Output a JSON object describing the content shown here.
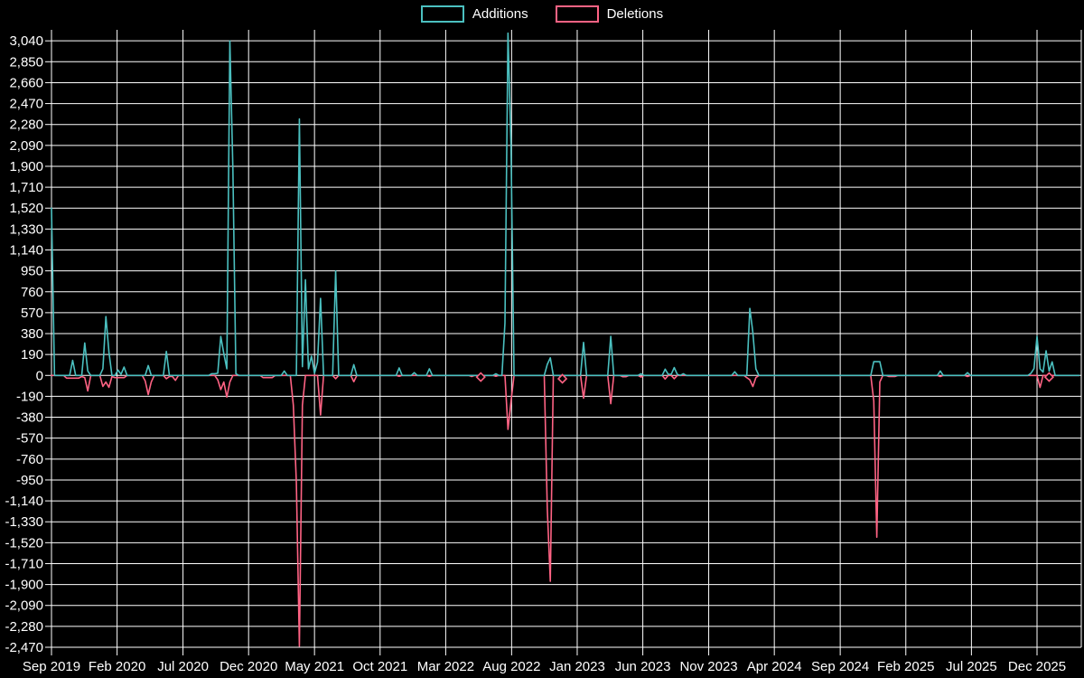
{
  "chart_data": {
    "type": "line",
    "title": "",
    "xlabel": "",
    "ylabel": "",
    "grid": true,
    "legend_position": "top-center",
    "background_color": "#000000",
    "grid_color": "#ffffff",
    "text_color": "#ffffff",
    "ylim": [
      -2470,
      3140
    ],
    "y_tick_step": 190,
    "y_ticks": [
      3040,
      2850,
      2660,
      2470,
      2280,
      2090,
      1900,
      1710,
      1520,
      1330,
      1140,
      950,
      760,
      570,
      380,
      190,
      0,
      -190,
      -380,
      -570,
      -760,
      -950,
      -1140,
      -1330,
      -1520,
      -1710,
      -1900,
      -2090,
      -2280,
      -2470
    ],
    "y_tick_labels": [
      "3,040",
      "2,850",
      "2,660",
      "2,470",
      "2,280",
      "2,090",
      "1,900",
      "1,710",
      "1,520",
      "1,330",
      "1,140",
      "950",
      "760",
      "570",
      "380",
      "190",
      "0",
      "-190",
      "-380",
      "-570",
      "-760",
      "-950",
      "-1,140",
      "-1,330",
      "-1,520",
      "-1,710",
      "-1,900",
      "-2,090",
      "-2,280",
      "-2,470"
    ],
    "x_unit": "week-index from Sep 2019",
    "x_range_weeks": [
      0,
      340
    ],
    "x_ticks": [
      {
        "label": "Sep 2019",
        "week": 0
      },
      {
        "label": "Feb 2020",
        "week": 21.7
      },
      {
        "label": "Jul 2020",
        "week": 43.5
      },
      {
        "label": "Dec 2020",
        "week": 65.2
      },
      {
        "label": "May 2021",
        "week": 87.0
      },
      {
        "label": "Oct 2021",
        "week": 108.7
      },
      {
        "label": "Mar 2022",
        "week": 130.4
      },
      {
        "label": "Aug 2022",
        "week": 152.2
      },
      {
        "label": "Jan 2023",
        "week": 173.9
      },
      {
        "label": "Jun 2023",
        "week": 195.6
      },
      {
        "label": "Nov 2023",
        "week": 217.4
      },
      {
        "label": "Apr 2024",
        "week": 239.1
      },
      {
        "label": "Sep 2024",
        "week": 260.9
      },
      {
        "label": "Feb 2025",
        "week": 282.6
      },
      {
        "label": "Jul 2025",
        "week": 304.3
      },
      {
        "label": "Dec 2025",
        "week": 326
      }
    ],
    "series": [
      {
        "name": "Additions",
        "color": "#4BC0C0",
        "points": [
          [
            0,
            1520
          ],
          [
            1,
            0
          ],
          [
            6,
            0
          ],
          [
            7,
            137
          ],
          [
            8,
            0
          ],
          [
            10,
            0
          ],
          [
            11,
            295
          ],
          [
            12,
            40
          ],
          [
            13,
            0
          ],
          [
            16,
            0
          ],
          [
            17,
            60
          ],
          [
            18,
            535
          ],
          [
            19,
            213
          ],
          [
            20,
            0
          ],
          [
            22,
            49
          ],
          [
            23,
            10
          ],
          [
            24,
            76
          ],
          [
            25,
            0
          ],
          [
            31,
            0
          ],
          [
            32,
            90
          ],
          [
            33,
            0
          ],
          [
            37,
            0
          ],
          [
            38,
            218
          ],
          [
            39,
            0
          ],
          [
            52,
            0
          ],
          [
            53,
            15
          ],
          [
            54,
            15
          ],
          [
            55,
            20
          ],
          [
            56,
            354
          ],
          [
            57,
            199
          ],
          [
            58,
            60
          ],
          [
            59,
            3040
          ],
          [
            60,
            1880
          ],
          [
            61,
            15
          ],
          [
            62,
            0
          ],
          [
            76,
            0
          ],
          [
            77,
            40
          ],
          [
            78,
            0
          ],
          [
            81,
            0
          ],
          [
            82,
            2330
          ],
          [
            83,
            80
          ],
          [
            84,
            870
          ],
          [
            85,
            60
          ],
          [
            86,
            175
          ],
          [
            87,
            20
          ],
          [
            88,
            120
          ],
          [
            89,
            700
          ],
          [
            90,
            0
          ],
          [
            93,
            0
          ],
          [
            94,
            950
          ],
          [
            95,
            0
          ],
          [
            99,
            0
          ],
          [
            100,
            98
          ],
          [
            101,
            0
          ],
          [
            114,
            0
          ],
          [
            115,
            68
          ],
          [
            116,
            0
          ],
          [
            119,
            0
          ],
          [
            120,
            25
          ],
          [
            121,
            0
          ],
          [
            124,
            0
          ],
          [
            125,
            60
          ],
          [
            126,
            0
          ],
          [
            146,
            0
          ],
          [
            147,
            15
          ],
          [
            148,
            0
          ],
          [
            149,
            0
          ],
          [
            150,
            475
          ],
          [
            151,
            3110
          ],
          [
            152,
            2090
          ],
          [
            153,
            0
          ],
          [
            163,
            0
          ],
          [
            164,
            100
          ],
          [
            165,
            160
          ],
          [
            166,
            0
          ],
          [
            175,
            0
          ],
          [
            176,
            300
          ],
          [
            177,
            0
          ],
          [
            184,
            0
          ],
          [
            185,
            355
          ],
          [
            186,
            0
          ],
          [
            194,
            0
          ],
          [
            195,
            15
          ],
          [
            196,
            0
          ],
          [
            202,
            0
          ],
          [
            203,
            57
          ],
          [
            204,
            10
          ],
          [
            205,
            10
          ],
          [
            206,
            71
          ],
          [
            207,
            10
          ],
          [
            208,
            0
          ],
          [
            209,
            15
          ],
          [
            210,
            0
          ],
          [
            225,
            0
          ],
          [
            226,
            33
          ],
          [
            227,
            0
          ],
          [
            230,
            0
          ],
          [
            231,
            609
          ],
          [
            232,
            391
          ],
          [
            233,
            60
          ],
          [
            234,
            0
          ],
          [
            271,
            0
          ],
          [
            272,
            125
          ],
          [
            273,
            125
          ],
          [
            274,
            125
          ],
          [
            275,
            0
          ],
          [
            293,
            0
          ],
          [
            294,
            40
          ],
          [
            295,
            0
          ],
          [
            302,
            0
          ],
          [
            303,
            25
          ],
          [
            304,
            0
          ],
          [
            323,
            0
          ],
          [
            324,
            20
          ],
          [
            325,
            62
          ],
          [
            326,
            355
          ],
          [
            327,
            60
          ],
          [
            328,
            30
          ],
          [
            329,
            224
          ],
          [
            330,
            40
          ],
          [
            331,
            123
          ],
          [
            332,
            0
          ]
        ]
      },
      {
        "name": "Deletions",
        "color": "#FF6384",
        "marker_weeks": [
          142,
          169,
          330
        ],
        "points": [
          [
            4,
            0
          ],
          [
            5,
            -25
          ],
          [
            6,
            -25
          ],
          [
            7,
            -25
          ],
          [
            8,
            -25
          ],
          [
            9,
            -25
          ],
          [
            10,
            -10
          ],
          [
            11,
            -20
          ],
          [
            12,
            -141
          ],
          [
            13,
            0
          ],
          [
            16,
            0
          ],
          [
            17,
            -100
          ],
          [
            18,
            -60
          ],
          [
            19,
            -108
          ],
          [
            20,
            -10
          ],
          [
            21,
            -20
          ],
          [
            22,
            -20
          ],
          [
            23,
            -20
          ],
          [
            24,
            -20
          ],
          [
            25,
            0
          ],
          [
            30,
            0
          ],
          [
            31,
            -50
          ],
          [
            32,
            -174
          ],
          [
            33,
            -60
          ],
          [
            34,
            0
          ],
          [
            37,
            0
          ],
          [
            38,
            -30
          ],
          [
            39,
            -10
          ],
          [
            40,
            -10
          ],
          [
            41,
            -45
          ],
          [
            42,
            0
          ],
          [
            54,
            0
          ],
          [
            55,
            -40
          ],
          [
            56,
            -129
          ],
          [
            57,
            -60
          ],
          [
            58,
            -197
          ],
          [
            59,
            -60
          ],
          [
            60,
            0
          ],
          [
            69,
            0
          ],
          [
            70,
            -20
          ],
          [
            71,
            -20
          ],
          [
            72,
            -20
          ],
          [
            73,
            -20
          ],
          [
            74,
            0
          ],
          [
            79,
            0
          ],
          [
            80,
            -270
          ],
          [
            81,
            -975
          ],
          [
            82,
            -2460
          ],
          [
            83,
            -270
          ],
          [
            84,
            0
          ],
          [
            88,
            0
          ],
          [
            89,
            -360
          ],
          [
            90,
            0
          ],
          [
            93,
            0
          ],
          [
            94,
            -30
          ],
          [
            95,
            0
          ],
          [
            99,
            0
          ],
          [
            100,
            -57
          ],
          [
            101,
            0
          ],
          [
            114,
            0
          ],
          [
            115,
            -8
          ],
          [
            116,
            0
          ],
          [
            124,
            0
          ],
          [
            125,
            -8
          ],
          [
            126,
            0
          ],
          [
            138,
            0
          ],
          [
            139,
            -10
          ],
          [
            140,
            0
          ],
          [
            141,
            0
          ],
          [
            142,
            -15
          ],
          [
            143,
            0
          ],
          [
            146,
            0
          ],
          [
            147,
            -8
          ],
          [
            148,
            0
          ],
          [
            150,
            0
          ],
          [
            151,
            -490
          ],
          [
            152,
            -238
          ],
          [
            153,
            0
          ],
          [
            163,
            0
          ],
          [
            164,
            -1210
          ],
          [
            165,
            -1870
          ],
          [
            166,
            0
          ],
          [
            168,
            0
          ],
          [
            169,
            -30
          ],
          [
            170,
            0
          ],
          [
            175,
            0
          ],
          [
            176,
            -207
          ],
          [
            177,
            0
          ],
          [
            184,
            0
          ],
          [
            185,
            -257
          ],
          [
            186,
            0
          ],
          [
            188,
            0
          ],
          [
            189,
            -12
          ],
          [
            190,
            -12
          ],
          [
            191,
            0
          ],
          [
            194,
            0
          ],
          [
            195,
            -15
          ],
          [
            196,
            0
          ],
          [
            202,
            0
          ],
          [
            203,
            -33
          ],
          [
            204,
            0
          ],
          [
            205,
            0
          ],
          [
            206,
            -30
          ],
          [
            207,
            0
          ],
          [
            229,
            0
          ],
          [
            230,
            -20
          ],
          [
            231,
            -40
          ],
          [
            232,
            -101
          ],
          [
            233,
            -20
          ],
          [
            234,
            0
          ],
          [
            271,
            0
          ],
          [
            272,
            -230
          ],
          [
            273,
            -1470
          ],
          [
            274,
            -60
          ],
          [
            275,
            0
          ],
          [
            276,
            0
          ],
          [
            277,
            -10
          ],
          [
            278,
            -10
          ],
          [
            279,
            -10
          ],
          [
            280,
            0
          ],
          [
            293,
            0
          ],
          [
            294,
            -10
          ],
          [
            295,
            0
          ],
          [
            302,
            0
          ],
          [
            303,
            -10
          ],
          [
            304,
            0
          ],
          [
            326,
            0
          ],
          [
            327,
            -109
          ],
          [
            328,
            0
          ],
          [
            329,
            0
          ],
          [
            330,
            -15
          ],
          [
            331,
            0
          ]
        ]
      }
    ]
  }
}
